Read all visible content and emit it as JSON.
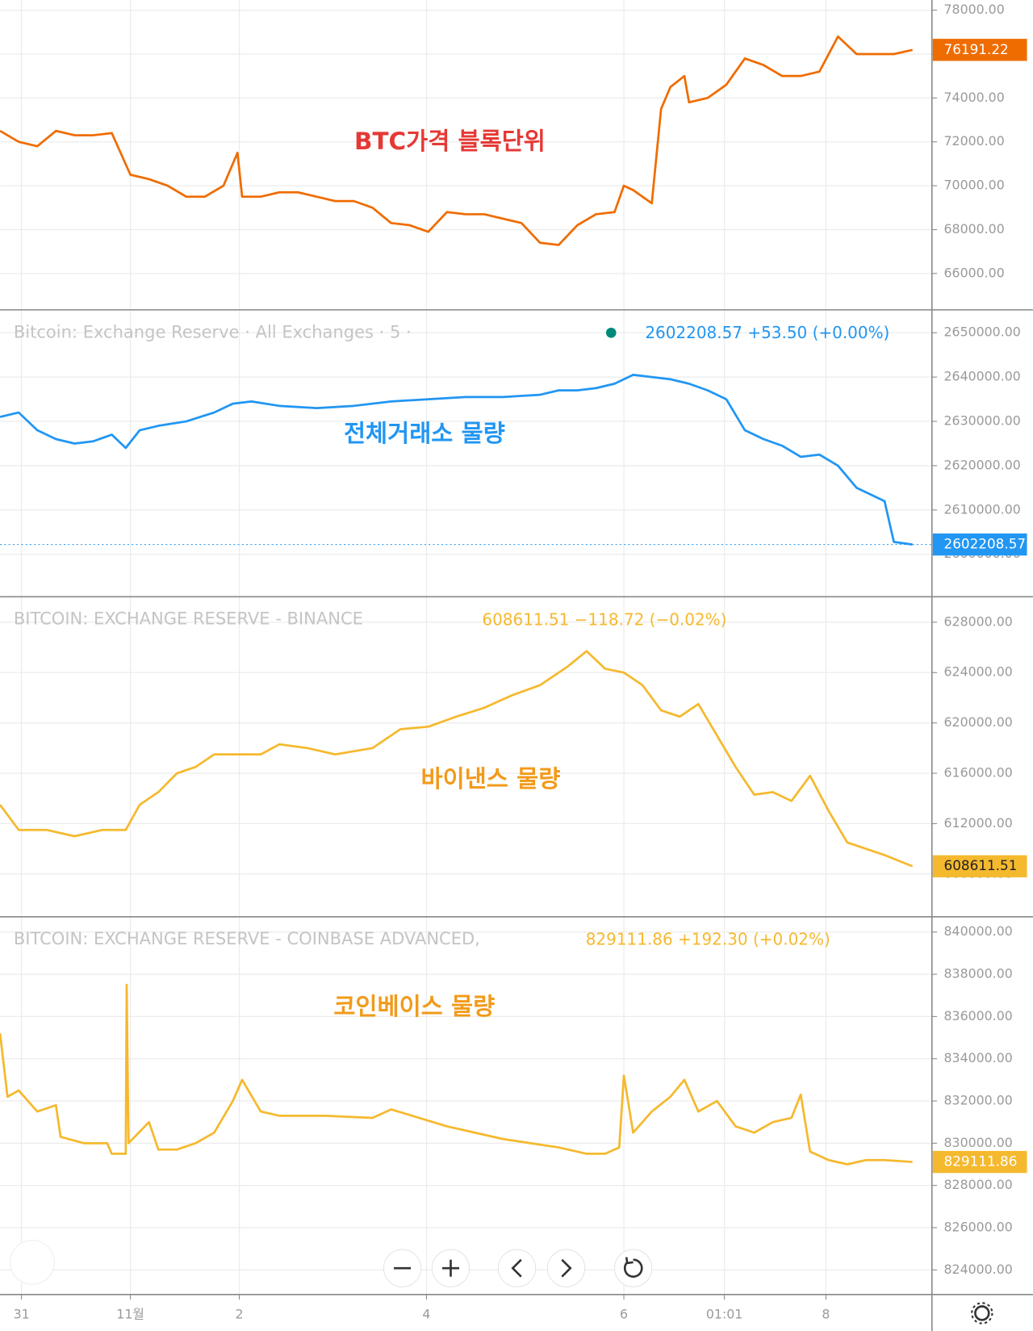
{
  "chart_data": [
    {
      "type": "line",
      "annotation": "BTC가격 블록단위",
      "annotation_color": "#e53935",
      "color": "#ef6c00",
      "x": [
        0,
        2,
        4,
        6,
        8,
        10,
        12,
        14,
        16,
        18,
        20,
        22,
        24,
        25.5,
        26,
        28,
        30,
        32,
        34,
        36,
        38,
        40,
        42,
        44,
        46,
        48,
        50,
        52,
        54,
        56,
        58,
        60,
        62,
        64,
        66,
        67,
        68,
        70,
        71,
        72,
        73.5,
        74,
        76,
        78,
        80,
        82,
        84,
        86,
        88,
        90,
        92,
        94,
        96,
        98
      ],
      "values": [
        72500,
        72000,
        71800,
        72500,
        72300,
        72300,
        72400,
        70500,
        70300,
        70000,
        69500,
        69500,
        70000,
        71500,
        69500,
        69500,
        69700,
        69700,
        69500,
        69300,
        69300,
        69000,
        68300,
        68200,
        67900,
        68800,
        68700,
        68700,
        68500,
        68300,
        67400,
        67300,
        68200,
        68700,
        68800,
        70000,
        69800,
        69200,
        73500,
        74500,
        75000,
        73800,
        74000,
        74600,
        75800,
        75500,
        75000,
        75000,
        75200,
        76800,
        76000,
        76000,
        76000,
        76191.22
      ],
      "xlim": [
        0,
        100
      ],
      "ylim": [
        64344,
        78464
      ],
      "yticks": [
        {
          "value": 78000,
          "label": "78000.00"
        },
        {
          "value": 76000,
          "label": "76000.00"
        },
        {
          "value": 74000,
          "label": "74000.00"
        },
        {
          "value": 72000,
          "label": "72000.00"
        },
        {
          "value": 70000,
          "label": "70000.00"
        },
        {
          "value": 68000,
          "label": "68000.00"
        },
        {
          "value": 66000,
          "label": "66000.00"
        }
      ],
      "grid": true,
      "last_value_line": false
    },
    {
      "type": "line",
      "title": "Bitcoin: Exchange Reserve · All Exchanges · 5 ·",
      "value_text": "2602208.57  +53.50 (+0.00%)",
      "annotation": "전체거래소 물량",
      "annotation_color": "#2196f3",
      "color": "#2196f3",
      "x": [
        0,
        2,
        4,
        6,
        8,
        10,
        12,
        13.5,
        15,
        17,
        20,
        23,
        25,
        27,
        30,
        34,
        38,
        42,
        46,
        50,
        54,
        58,
        60,
        62,
        64,
        66,
        68,
        70,
        72,
        74,
        76,
        78,
        80,
        82,
        84,
        86,
        88,
        90,
        92,
        94,
        95,
        96,
        98
      ],
      "values": [
        2631000,
        2632000,
        2628000,
        2626000,
        2625000,
        2625500,
        2627000,
        2624000,
        2628000,
        2629000,
        2630000,
        2632000,
        2634000,
        2634500,
        2633500,
        2633000,
        2633500,
        2634500,
        2635000,
        2635500,
        2635500,
        2636000,
        2637000,
        2637000,
        2637500,
        2638500,
        2640500,
        2640000,
        2639500,
        2638500,
        2637000,
        2635000,
        2628000,
        2626000,
        2624500,
        2622000,
        2622500,
        2620000,
        2615000,
        2613000,
        2612000,
        2602800,
        2602208.57
      ],
      "xlim": [
        0,
        100
      ],
      "ylim": [
        2590421,
        2655172
      ],
      "yticks": [
        {
          "value": 2650000,
          "label": "2650000.00"
        },
        {
          "value": 2640000,
          "label": "2640000.00"
        },
        {
          "value": 2630000,
          "label": "2630000.00"
        },
        {
          "value": 2620000,
          "label": "2620000.00"
        },
        {
          "value": 2610000,
          "label": "2610000.00"
        },
        {
          "value": 2600000,
          "label": "2600000.00"
        }
      ],
      "grid": true,
      "last_value_line": true
    },
    {
      "type": "line",
      "title": "BITCOIN: EXCHANGE RESERVE - BINANCE",
      "value_text": "608611.51  −118.72 (−0.02%)",
      "annotation": "바이낸스 물량",
      "annotation_color": "#f29a1a",
      "color": "#f5b92e",
      "x": [
        0,
        2,
        5,
        8,
        11,
        13.5,
        15,
        17,
        19,
        21,
        23,
        26,
        28,
        30,
        33,
        36,
        40,
        43,
        46,
        49,
        52,
        55,
        58,
        61,
        63,
        65,
        67,
        69,
        71,
        73,
        75,
        77,
        79,
        81,
        83,
        85,
        87,
        89,
        91,
        93,
        95,
        98
      ],
      "values": [
        613500,
        611500,
        611500,
        611000,
        611500,
        611500,
        613500,
        614500,
        616000,
        616500,
        617500,
        617500,
        617500,
        618300,
        618000,
        617500,
        618000,
        619500,
        619700,
        620500,
        621200,
        622200,
        623000,
        624500,
        625700,
        624300,
        624000,
        623000,
        621000,
        620500,
        621500,
        619000,
        616500,
        614300,
        614500,
        613800,
        615800,
        613000,
        610500,
        610000,
        609500,
        608611.51
      ],
      "xlim": [
        0,
        100
      ],
      "ylim": [
        604601,
        630023
      ],
      "yticks": [
        {
          "value": 628000,
          "label": "628000.00"
        },
        {
          "value": 624000,
          "label": "624000.00"
        },
        {
          "value": 620000,
          "label": "620000.00"
        },
        {
          "value": 616000,
          "label": "616000.00"
        },
        {
          "value": 612000,
          "label": "612000.00"
        },
        {
          "value": 608000,
          "label": "608000.00"
        }
      ],
      "grid": true,
      "last_value_line": false
    },
    {
      "type": "line",
      "title": "BITCOIN: EXCHANGE RESERVE - COINBASE ADVANCED,",
      "value_text": "829111.86  +192.30 (+0.02%)",
      "annotation": "코인베이스 물량",
      "annotation_color": "#f29a1a",
      "color": "#f5b92e",
      "x": [
        0,
        0.8,
        2,
        4,
        6,
        6.5,
        9,
        11.5,
        12,
        13.5,
        13.6,
        13.8,
        16,
        17,
        19,
        21,
        23,
        25,
        26,
        28,
        30,
        35,
        40,
        42,
        45,
        48,
        51,
        54,
        57,
        60,
        63,
        65,
        66.5,
        67,
        68,
        70,
        72,
        73.5,
        75,
        77,
        79,
        81,
        83,
        85,
        86,
        87,
        89,
        91,
        93,
        95,
        98
      ],
      "values": [
        835200,
        832200,
        832500,
        831500,
        831800,
        830300,
        830000,
        830000,
        829500,
        829500,
        837500,
        830000,
        831000,
        829700,
        829700,
        830000,
        830500,
        832000,
        833000,
        831500,
        831300,
        831300,
        831200,
        831600,
        831200,
        830800,
        830500,
        830200,
        830000,
        829800,
        829500,
        829500,
        829800,
        833200,
        830500,
        831500,
        832200,
        833000,
        831500,
        832000,
        830800,
        830500,
        831000,
        831200,
        832300,
        829600,
        829200,
        829000,
        829200,
        829200,
        829111.86
      ],
      "xlim": [
        0,
        100
      ],
      "ylim": [
        822835,
        840724
      ],
      "yticks": [
        {
          "value": 840000,
          "label": "840000.00"
        },
        {
          "value": 838000,
          "label": "838000.00"
        },
        {
          "value": 836000,
          "label": "836000.00"
        },
        {
          "value": 834000,
          "label": "834000.00"
        },
        {
          "value": 832000,
          "label": "832000.00"
        },
        {
          "value": 830000,
          "label": "830000.00"
        },
        {
          "value": 828000,
          "label": "828000.00"
        },
        {
          "value": 826000,
          "label": "826000.00"
        },
        {
          "value": 824000,
          "label": "824000.00"
        }
      ],
      "xticks": [
        {
          "value": 2.3,
          "label": "31"
        },
        {
          "value": 14,
          "label": "11월"
        },
        {
          "value": 25.7,
          "label": "2"
        },
        {
          "value": 45.8,
          "label": "4"
        },
        {
          "value": 67,
          "label": "6"
        },
        {
          "value": 77.8,
          "label": "01:01"
        },
        {
          "value": 88.7,
          "label": "8"
        }
      ],
      "grid": true,
      "last_value_line": false
    }
  ]
}
